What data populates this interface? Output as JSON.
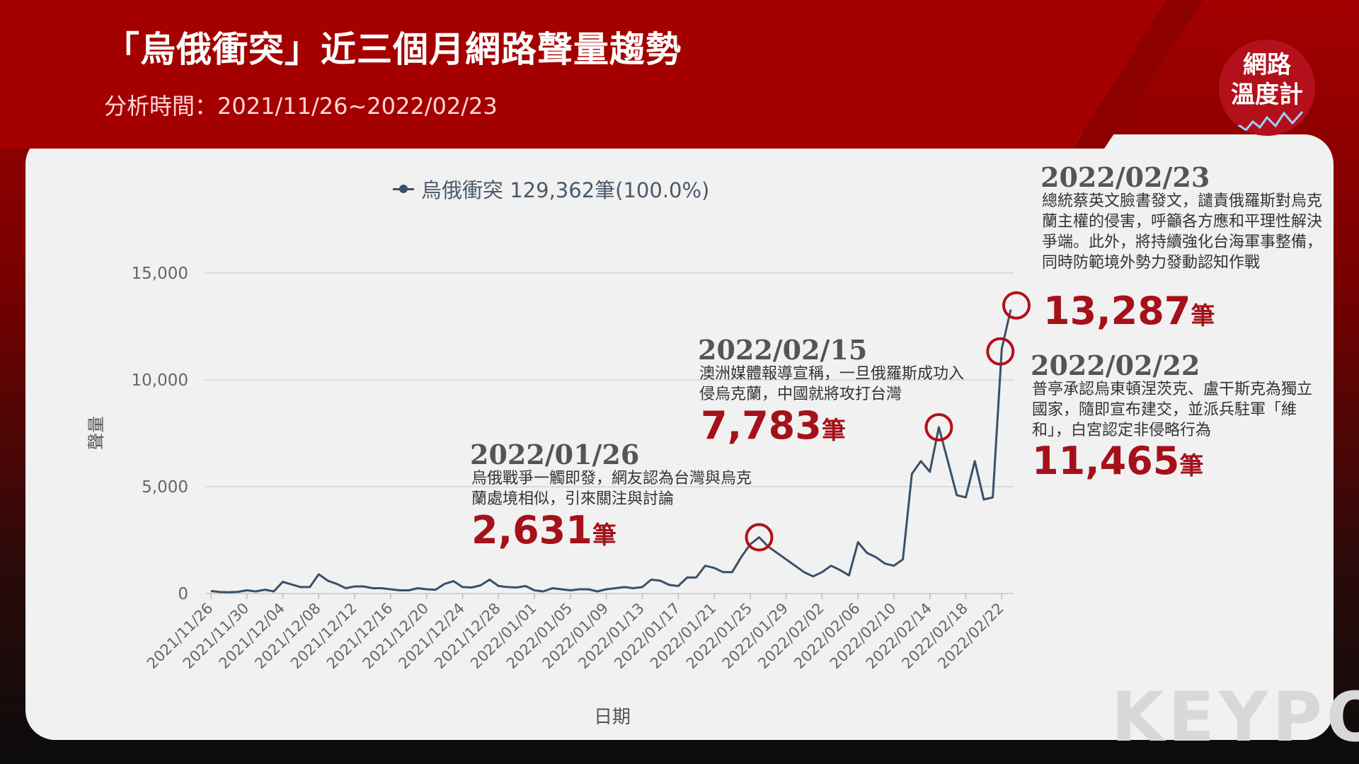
{
  "header": {
    "title": "「烏俄衝突」近三個月網路聲量趨勢",
    "subtitle_label": "分析時間：",
    "subtitle_range": "2021/11/26~2022/02/23"
  },
  "logo": {
    "line1": "網路",
    "line2": "溫度計"
  },
  "watermark": "KEYPO",
  "legend": {
    "series_name": "烏俄衝突",
    "total": "129,362筆(100.0%)"
  },
  "colors": {
    "line": "#3b5068",
    "accent": "#a5111a",
    "header": "#a40000"
  },
  "annotations": [
    {
      "date": "2022/01/26",
      "desc": "烏俄戰爭一觸即發，網友認為台灣與烏克蘭處境相似，引來關注與討論",
      "value": "2,631",
      "unit": "筆"
    },
    {
      "date": "2022/02/15",
      "desc": "澳洲媒體報導宣稱，一旦俄羅斯成功入侵烏克蘭，中國就將攻打台灣",
      "value": "7,783",
      "unit": "筆"
    },
    {
      "date": "2022/02/22",
      "desc": "普亭承認烏東頓涅茨克、盧干斯克為獨立國家，隨即宣布建交，並派兵駐軍「維和」，白宮認定非侵略行為",
      "value": "11,465",
      "unit": "筆"
    },
    {
      "date": "2022/02/23",
      "desc": "總統蔡英文臉書發文，譴責俄羅斯對烏克蘭主權的侵害，呼籲各方應和平理性解決爭端。此外，將持續強化台海軍事整備，同時防範境外勢力發動認知作戰",
      "value": "13,287",
      "unit": "筆"
    }
  ],
  "chart_data": {
    "type": "line",
    "xlabel": "日期",
    "ylabel": "聲量",
    "ylim": [
      0,
      15000
    ],
    "yticks": [
      0,
      5000,
      10000,
      15000
    ],
    "ytick_labels": [
      "0",
      "5,000",
      "10,000",
      "15,000"
    ],
    "grid": true,
    "legend_position": "top",
    "x_tick_labels": [
      "2021/11/26",
      "2021/11/30",
      "2021/12/04",
      "2021/12/08",
      "2021/12/12",
      "2021/12/16",
      "2021/12/20",
      "2021/12/24",
      "2021/12/28",
      "2022/01/01",
      "2022/01/05",
      "2022/01/09",
      "2022/01/13",
      "2022/01/17",
      "2022/01/21",
      "2022/01/25",
      "2022/01/29",
      "2022/02/02",
      "2022/02/06",
      "2022/02/10",
      "2022/02/14",
      "2022/02/18",
      "2022/02/22"
    ],
    "series": [
      {
        "name": "烏俄衝突",
        "start_date": "2021/11/26",
        "end_date": "2022/02/23",
        "values": [
          120,
          70,
          60,
          80,
          150,
          100,
          180,
          100,
          550,
          420,
          300,
          300,
          900,
          600,
          450,
          250,
          330,
          330,
          250,
          250,
          200,
          150,
          150,
          250,
          200,
          180,
          450,
          580,
          300,
          280,
          380,
          650,
          350,
          300,
          280,
          350,
          150,
          100,
          250,
          200,
          150,
          200,
          200,
          100,
          200,
          250,
          300,
          250,
          300,
          650,
          600,
          400,
          350,
          750,
          750,
          1300,
          1200,
          1000,
          1000,
          1700,
          2300,
          2631,
          2200,
          1900,
          1600,
          1300,
          1000,
          800,
          1000,
          1300,
          1100,
          850,
          2400,
          1900,
          1700,
          1400,
          1300,
          1600,
          5600,
          6200,
          5700,
          7783,
          6200,
          4600,
          4500,
          6200,
          4400,
          4500,
          11465,
          13287
        ]
      }
    ]
  }
}
